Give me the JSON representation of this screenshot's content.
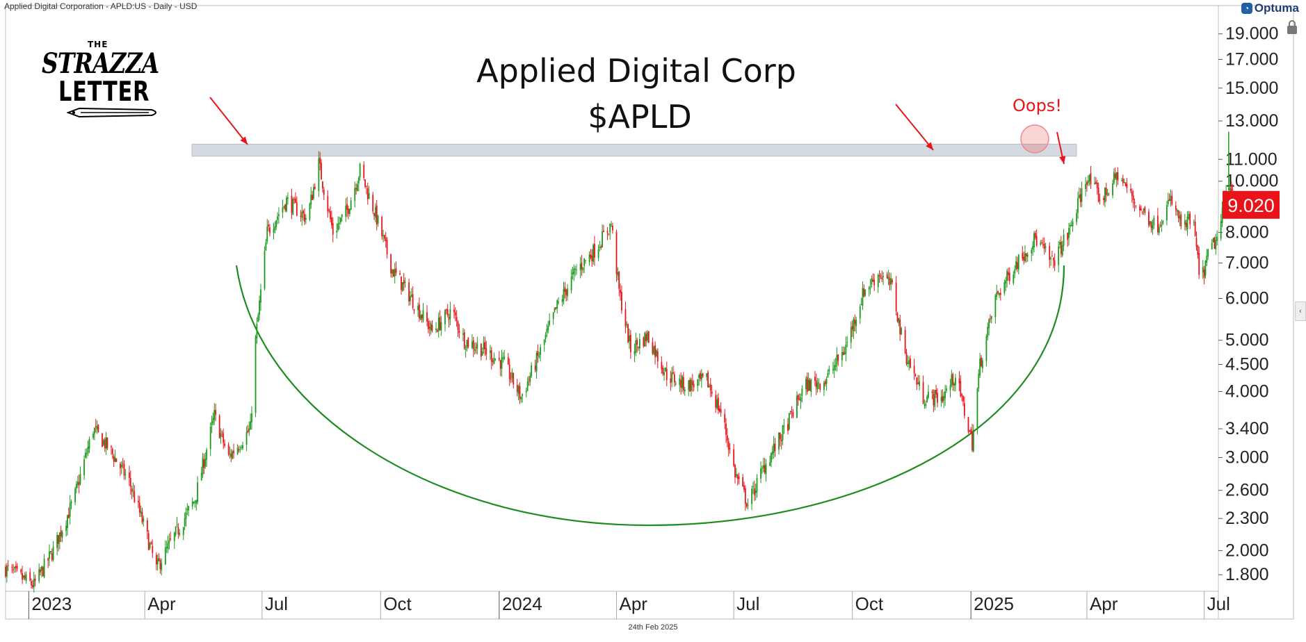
{
  "header": {
    "chart_info": "Applied Digital Corporation - APLD:US - Daily - USD",
    "brand": "Optuma",
    "date_footer": "24th Feb 2025"
  },
  "logo": {
    "the": "THE",
    "line1": "STRAZZA",
    "line2": "LETTER"
  },
  "colors": {
    "up": "#1a9a1a",
    "down": "#e8141a",
    "arc": "#1e8c1e",
    "resistance_band": "#d4dae2",
    "price_tag": "#e8141a",
    "annotation": "#e8141a"
  },
  "icons": [
    "optuma-logo-icon",
    "lock-icon",
    "collapse-arrow-icon",
    "pen-icon"
  ],
  "chart_data": {
    "type": "candlestick",
    "title": "Applied Digital Corp",
    "subtitle": "$APLD",
    "y_scale": "log",
    "ylim": [
      1.68,
      20.6
    ],
    "y_ticks": [
      "19.000",
      "17.000",
      "15.000",
      "13.000",
      "11.000",
      "10.000",
      "8.000",
      "7.000",
      "6.000",
      "5.000",
      "4.500",
      "4.000",
      "3.400",
      "3.000",
      "2.600",
      "2.300",
      "2.000",
      "1.800"
    ],
    "x_range": [
      "2022-12-14",
      "2025-07-12"
    ],
    "x_ticks": [
      {
        "date": "2023-01-01",
        "label": "2023",
        "major": true
      },
      {
        "date": "2023-04-01",
        "label": "Apr",
        "major": false
      },
      {
        "date": "2023-07-01",
        "label": "Jul",
        "major": false
      },
      {
        "date": "2023-10-01",
        "label": "Oct",
        "major": false
      },
      {
        "date": "2024-01-01",
        "label": "2024",
        "major": true
      },
      {
        "date": "2024-04-01",
        "label": "Apr",
        "major": false
      },
      {
        "date": "2024-07-01",
        "label": "Jul",
        "major": false
      },
      {
        "date": "2024-10-01",
        "label": "Oct",
        "major": false
      },
      {
        "date": "2025-01-01",
        "label": "2025",
        "major": true
      },
      {
        "date": "2025-04-01",
        "label": "Apr",
        "major": false
      },
      {
        "date": "2025-07-01",
        "label": "Jul",
        "major": false
      }
    ],
    "price_path": [
      [
        "2022-12-14",
        1.85
      ],
      [
        "2023-01-05",
        1.72
      ],
      [
        "2023-01-20",
        2.0
      ],
      [
        "2023-02-05",
        2.5
      ],
      [
        "2023-02-20",
        3.4
      ],
      [
        "2023-03-05",
        3.1
      ],
      [
        "2023-03-20",
        2.7
      ],
      [
        "2023-04-01",
        2.2
      ],
      [
        "2023-04-10",
        1.85
      ],
      [
        "2023-04-25",
        2.15
      ],
      [
        "2023-05-10",
        2.5
      ],
      [
        "2023-05-25",
        3.6
      ],
      [
        "2023-06-05",
        3.0
      ],
      [
        "2023-06-22",
        3.4
      ],
      [
        "2023-06-26",
        5.0
      ],
      [
        "2023-07-05",
        8.0
      ],
      [
        "2023-07-20",
        9.2
      ],
      [
        "2023-08-05",
        8.5
      ],
      [
        "2023-08-14",
        10.8
      ],
      [
        "2023-08-25",
        8.0
      ],
      [
        "2023-09-05",
        8.8
      ],
      [
        "2023-09-15",
        10.5
      ],
      [
        "2023-09-28",
        8.5
      ],
      [
        "2023-10-10",
        6.8
      ],
      [
        "2023-10-25",
        6.0
      ],
      [
        "2023-11-10",
        5.2
      ],
      [
        "2023-11-25",
        5.7
      ],
      [
        "2023-12-05",
        5.0
      ],
      [
        "2023-12-20",
        4.8
      ],
      [
        "2024-01-05",
        4.5
      ],
      [
        "2024-01-18",
        3.9
      ],
      [
        "2024-02-01",
        4.7
      ],
      [
        "2024-02-15",
        5.8
      ],
      [
        "2024-03-01",
        6.8
      ],
      [
        "2024-03-15",
        7.4
      ],
      [
        "2024-03-28",
        8.3
      ],
      [
        "2024-04-03",
        6.2
      ],
      [
        "2024-04-12",
        4.8
      ],
      [
        "2024-04-25",
        5.1
      ],
      [
        "2024-05-10",
        4.3
      ],
      [
        "2024-05-25",
        4.1
      ],
      [
        "2024-06-10",
        4.2
      ],
      [
        "2024-06-22",
        3.6
      ],
      [
        "2024-07-02",
        2.8
      ],
      [
        "2024-07-12",
        2.45
      ],
      [
        "2024-07-25",
        2.9
      ],
      [
        "2024-08-10",
        3.4
      ],
      [
        "2024-08-25",
        4.1
      ],
      [
        "2024-09-10",
        4.2
      ],
      [
        "2024-09-25",
        4.8
      ],
      [
        "2024-10-10",
        6.2
      ],
      [
        "2024-10-22",
        6.7
      ],
      [
        "2024-11-01",
        6.3
      ],
      [
        "2024-11-10",
        4.8
      ],
      [
        "2024-11-25",
        3.9
      ],
      [
        "2024-12-10",
        3.9
      ],
      [
        "2024-12-20",
        4.3
      ],
      [
        "2025-01-02",
        3.2
      ],
      [
        "2025-01-08",
        4.5
      ],
      [
        "2025-01-20",
        6.0
      ],
      [
        "2025-02-05",
        7.0
      ],
      [
        "2025-02-20",
        7.8
      ],
      [
        "2025-03-05",
        7.0
      ],
      [
        "2025-03-18",
        8.0
      ],
      [
        "2025-04-01",
        10.2
      ],
      [
        "2025-04-12",
        9.2
      ],
      [
        "2025-04-25",
        10.3
      ],
      [
        "2025-05-10",
        9.0
      ],
      [
        "2025-05-25",
        8.2
      ],
      [
        "2025-06-05",
        9.2
      ],
      [
        "2025-06-15",
        8.1
      ],
      [
        "2025-06-22",
        8.6
      ],
      [
        "2025-06-28",
        6.4
      ],
      [
        "2025-07-06",
        7.5
      ],
      [
        "2025-07-12",
        7.8
      ],
      [
        "2025-07-20",
        10.2
      ],
      [
        "2025-07-26",
        9.02
      ]
    ],
    "resistance_zone": {
      "from": 11.15,
      "to": 11.75
    },
    "last_price": "9.020",
    "annotations": [
      {
        "text": "Oops!"
      }
    ]
  }
}
